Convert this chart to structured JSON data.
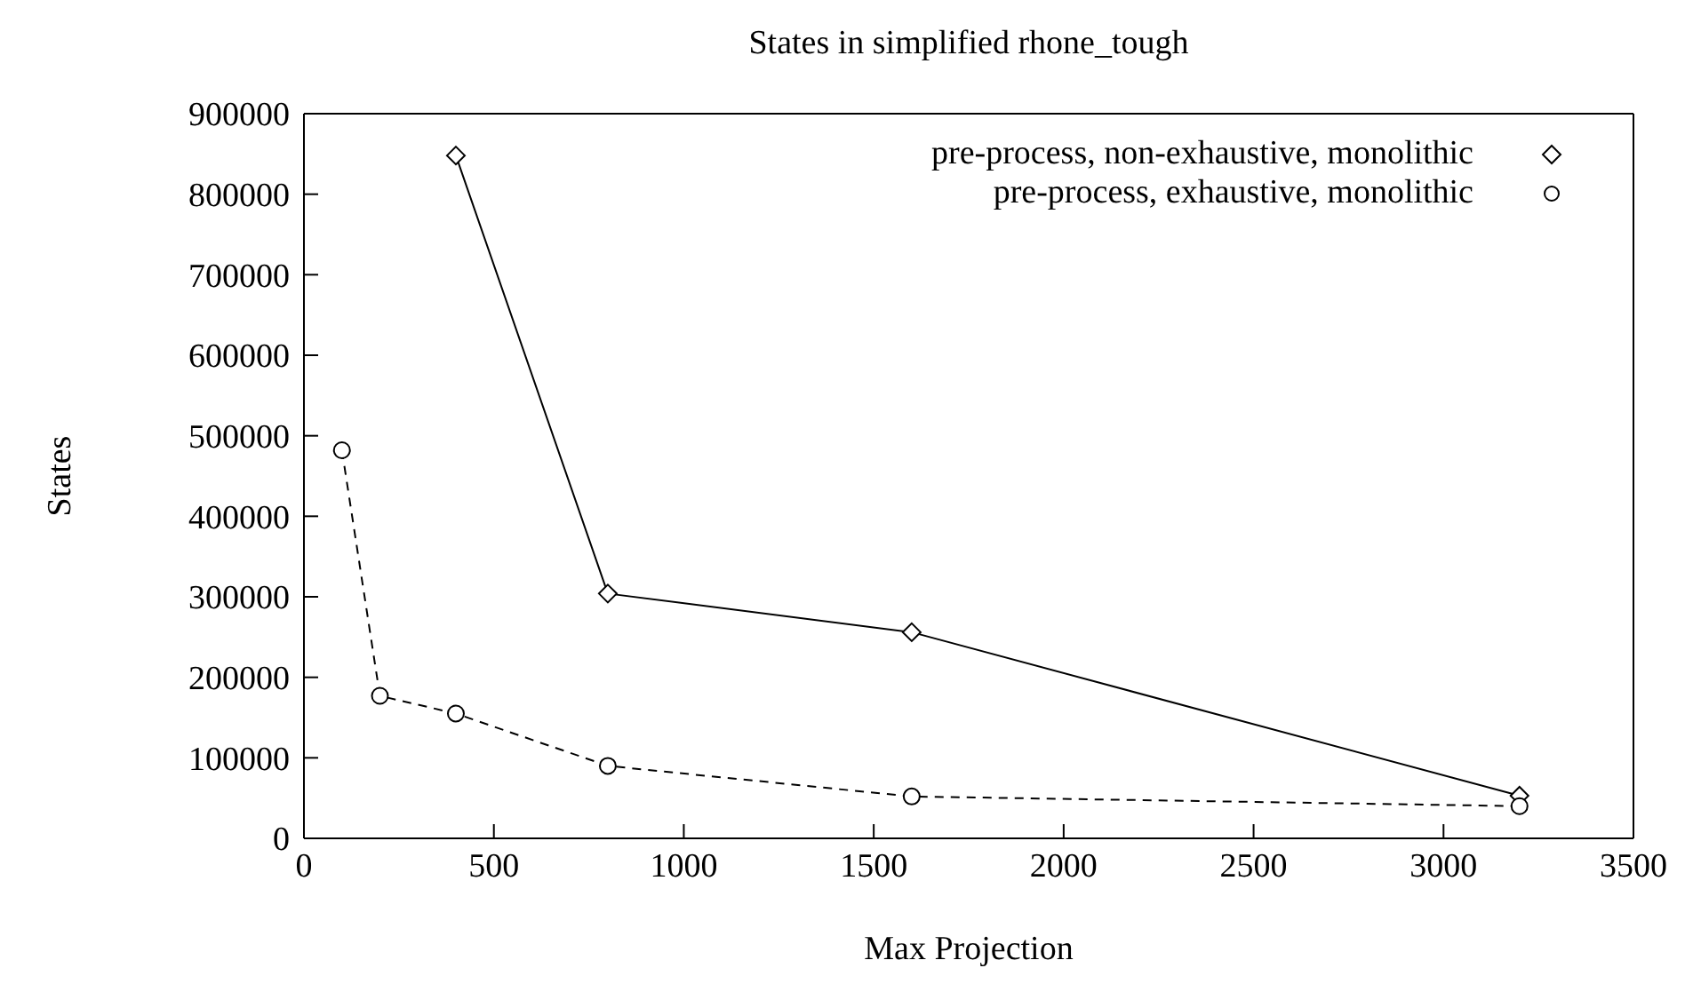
{
  "chart_data": {
    "type": "line",
    "title": "States in simplified rhone_tough",
    "xlabel": "Max Projection",
    "ylabel": "States",
    "xlim": [
      0,
      3500
    ],
    "xticks": [
      0,
      500,
      1000,
      1500,
      2000,
      2500,
      3000,
      3500
    ],
    "ylim": [
      0,
      900000
    ],
    "yticks": [
      0,
      100000,
      200000,
      300000,
      400000,
      500000,
      600000,
      700000,
      800000,
      900000
    ],
    "legend": "top right",
    "series": [
      {
        "name": "pre-process, non-exhaustive, monolithic",
        "color": "#000000",
        "marker": "diamond",
        "line_style": "solid",
        "x": [
          400,
          800,
          1600,
          3200
        ],
        "values": [
          848000,
          304000,
          256000,
          53000
        ]
      },
      {
        "name": "pre-process, exhaustive, monolithic",
        "color": "#000000",
        "marker": "circle",
        "line_style": "dashed",
        "x": [
          100,
          200,
          400,
          800,
          1600,
          3200
        ],
        "values": [
          482000,
          177000,
          155000,
          90000,
          52000,
          40000
        ]
      }
    ]
  }
}
